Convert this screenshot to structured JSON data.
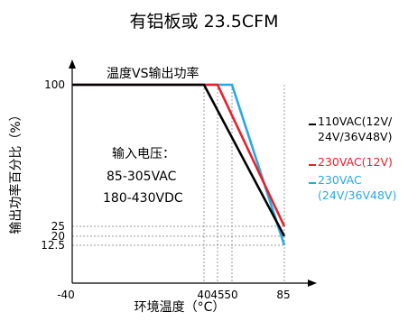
{
  "chart_data": {
    "type": "line",
    "title": "有铝板或 23.5CFM",
    "subtitle": "温度VS输出功率",
    "xlabel": "环境温度（°C）",
    "ylabel": "输出功率百分比（%）",
    "xlim": [
      -40,
      85
    ],
    "ylim": [
      0,
      100
    ],
    "x_ticks": [
      {
        "value": -40,
        "label": "-40"
      },
      {
        "value": 40,
        "label": "40"
      },
      {
        "value": 45,
        "label": "45"
      },
      {
        "value": 50,
        "label": "50"
      },
      {
        "value": 85,
        "label": "85"
      }
    ],
    "y_ticks": [
      {
        "value": 100,
        "label": "100"
      },
      {
        "value": 25,
        "label": "25"
      },
      {
        "value": 20,
        "label": "20"
      },
      {
        "value": 12.5,
        "label": "12.5"
      }
    ],
    "grid": "dotted reference lines at tick values",
    "legend_position": "right",
    "series": [
      {
        "name": "110VAC(12V/ 24V/36V48V)",
        "legend_lines": [
          "110VAC(12V/",
          "24V/36V48V)"
        ],
        "color": "#000000",
        "points": [
          [
            -40,
            100
          ],
          [
            40,
            100
          ],
          [
            85,
            20
          ]
        ]
      },
      {
        "name": "230VAC(12V)",
        "legend_lines": [
          "230VAC(12V)"
        ],
        "color": "#e8202a",
        "points": [
          [
            -40,
            100
          ],
          [
            45,
            100
          ],
          [
            85,
            25
          ]
        ]
      },
      {
        "name": "230VAC (24V/36V48V)",
        "legend_lines": [
          "230VAC",
          "(24V/36V48V)"
        ],
        "color": "#27a9e1",
        "points": [
          [
            -40,
            100
          ],
          [
            50,
            100
          ],
          [
            85,
            12.5
          ]
        ]
      }
    ],
    "annotation": {
      "lines": [
        "输入电压：",
        "85-305VAC",
        "180-430VDC"
      ]
    }
  }
}
